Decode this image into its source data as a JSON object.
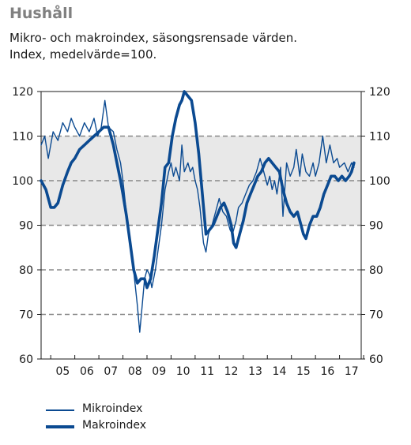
{
  "title": "Hushåll",
  "subtitle": [
    "Mikro- och makroindex, säsongsrensade värden.",
    "Index, medelvärde=100."
  ],
  "colors": {
    "series": "#0b4a91",
    "band": "#e8e8e8",
    "gridline": "#888888"
  },
  "chart_data": {
    "type": "line",
    "title": "Hushåll",
    "ylim": [
      60,
      120
    ],
    "yticks": [
      60,
      70,
      80,
      90,
      100,
      110,
      120
    ],
    "ytick_labels": [
      "60",
      "70",
      "80",
      "90",
      "100",
      "110",
      "120"
    ],
    "xlim": [
      2004.6,
      2017.9
    ],
    "xtick_labels": [
      "05",
      "06",
      "07",
      "08",
      "09",
      "10",
      "11",
      "12",
      "13",
      "14",
      "15",
      "16",
      "17"
    ],
    "shaded_band": [
      90,
      110
    ],
    "dashed_gridlines": [
      70,
      80,
      90,
      100,
      110
    ],
    "legend_position": "bottom-left",
    "series": [
      {
        "name": "Mikroindex",
        "style": "thin",
        "points": [
          [
            2004.6,
            108
          ],
          [
            2004.75,
            110
          ],
          [
            2004.9,
            105
          ],
          [
            2005.1,
            111
          ],
          [
            2005.3,
            109
          ],
          [
            2005.5,
            113
          ],
          [
            2005.7,
            111
          ],
          [
            2005.85,
            114
          ],
          [
            2006.0,
            112
          ],
          [
            2006.2,
            110
          ],
          [
            2006.4,
            113
          ],
          [
            2006.6,
            111
          ],
          [
            2006.8,
            114
          ],
          [
            2006.95,
            110
          ],
          [
            2007.1,
            112
          ],
          [
            2007.25,
            118
          ],
          [
            2007.4,
            112
          ],
          [
            2007.6,
            111
          ],
          [
            2007.75,
            107
          ],
          [
            2007.9,
            104
          ],
          [
            2008.0,
            100
          ],
          [
            2008.1,
            95
          ],
          [
            2008.25,
            88
          ],
          [
            2008.4,
            82
          ],
          [
            2008.5,
            77
          ],
          [
            2008.6,
            72
          ],
          [
            2008.7,
            66
          ],
          [
            2008.8,
            72
          ],
          [
            2008.9,
            78
          ],
          [
            2009.0,
            80
          ],
          [
            2009.1,
            79
          ],
          [
            2009.2,
            76
          ],
          [
            2009.35,
            80
          ],
          [
            2009.5,
            86
          ],
          [
            2009.6,
            90
          ],
          [
            2009.75,
            98
          ],
          [
            2009.9,
            102
          ],
          [
            2010.0,
            104
          ],
          [
            2010.1,
            101
          ],
          [
            2010.2,
            103
          ],
          [
            2010.35,
            100
          ],
          [
            2010.45,
            108
          ],
          [
            2010.55,
            102
          ],
          [
            2010.7,
            104
          ],
          [
            2010.8,
            102
          ],
          [
            2010.9,
            103
          ],
          [
            2011.0,
            100
          ],
          [
            2011.1,
            98
          ],
          [
            2011.2,
            94
          ],
          [
            2011.35,
            86
          ],
          [
            2011.45,
            84
          ],
          [
            2011.55,
            88
          ],
          [
            2011.7,
            90
          ],
          [
            2011.85,
            93
          ],
          [
            2012.0,
            96
          ],
          [
            2012.15,
            93
          ],
          [
            2012.3,
            92
          ],
          [
            2012.45,
            89
          ],
          [
            2012.55,
            88
          ],
          [
            2012.7,
            91
          ],
          [
            2012.8,
            94
          ],
          [
            2012.95,
            95
          ],
          [
            2013.1,
            97
          ],
          [
            2013.25,
            99
          ],
          [
            2013.4,
            100
          ],
          [
            2013.55,
            102
          ],
          [
            2013.7,
            105
          ],
          [
            2013.85,
            102
          ],
          [
            2014.0,
            99
          ],
          [
            2014.1,
            101
          ],
          [
            2014.2,
            98
          ],
          [
            2014.3,
            100
          ],
          [
            2014.4,
            97
          ],
          [
            2014.55,
            103
          ],
          [
            2014.65,
            92
          ],
          [
            2014.8,
            104
          ],
          [
            2014.95,
            101
          ],
          [
            2015.1,
            103
          ],
          [
            2015.2,
            107
          ],
          [
            2015.35,
            101
          ],
          [
            2015.45,
            106
          ],
          [
            2015.6,
            102
          ],
          [
            2015.75,
            101
          ],
          [
            2015.9,
            104
          ],
          [
            2016.0,
            101
          ],
          [
            2016.15,
            104
          ],
          [
            2016.3,
            110
          ],
          [
            2016.45,
            104
          ],
          [
            2016.6,
            108
          ],
          [
            2016.75,
            104
          ],
          [
            2016.9,
            105
          ],
          [
            2017.0,
            103
          ],
          [
            2017.2,
            104
          ],
          [
            2017.35,
            102
          ],
          [
            2017.5,
            104
          ],
          [
            2017.6,
            103
          ]
        ]
      },
      {
        "name": "Makroindex",
        "style": "thick",
        "points": [
          [
            2004.6,
            100
          ],
          [
            2004.8,
            98
          ],
          [
            2005.0,
            94
          ],
          [
            2005.15,
            94
          ],
          [
            2005.3,
            95
          ],
          [
            2005.5,
            99
          ],
          [
            2005.7,
            102
          ],
          [
            2005.85,
            104
          ],
          [
            2006.0,
            105
          ],
          [
            2006.2,
            107
          ],
          [
            2006.4,
            108
          ],
          [
            2006.6,
            109
          ],
          [
            2006.8,
            110
          ],
          [
            2007.0,
            111
          ],
          [
            2007.2,
            112
          ],
          [
            2007.4,
            112
          ],
          [
            2007.6,
            108
          ],
          [
            2007.75,
            104
          ],
          [
            2007.9,
            100
          ],
          [
            2008.0,
            97
          ],
          [
            2008.15,
            92
          ],
          [
            2008.3,
            86
          ],
          [
            2008.45,
            80
          ],
          [
            2008.6,
            77
          ],
          [
            2008.75,
            78
          ],
          [
            2008.9,
            78
          ],
          [
            2009.0,
            76
          ],
          [
            2009.15,
            78
          ],
          [
            2009.3,
            83
          ],
          [
            2009.45,
            89
          ],
          [
            2009.6,
            95
          ],
          [
            2009.75,
            103
          ],
          [
            2009.9,
            104
          ],
          [
            2010.05,
            110
          ],
          [
            2010.2,
            114
          ],
          [
            2010.35,
            117
          ],
          [
            2010.45,
            118
          ],
          [
            2010.55,
            120
          ],
          [
            2010.7,
            119
          ],
          [
            2010.85,
            118
          ],
          [
            2011.0,
            113
          ],
          [
            2011.15,
            106
          ],
          [
            2011.3,
            97
          ],
          [
            2011.45,
            88
          ],
          [
            2011.6,
            89
          ],
          [
            2011.75,
            90
          ],
          [
            2011.9,
            92
          ],
          [
            2012.05,
            94
          ],
          [
            2012.2,
            95
          ],
          [
            2012.35,
            93
          ],
          [
            2012.5,
            90
          ],
          [
            2012.6,
            86
          ],
          [
            2012.7,
            85
          ],
          [
            2012.85,
            88
          ],
          [
            2013.0,
            91
          ],
          [
            2013.15,
            95
          ],
          [
            2013.3,
            97
          ],
          [
            2013.45,
            99
          ],
          [
            2013.6,
            101
          ],
          [
            2013.75,
            102
          ],
          [
            2013.9,
            104
          ],
          [
            2014.05,
            105
          ],
          [
            2014.2,
            104
          ],
          [
            2014.35,
            103
          ],
          [
            2014.5,
            102
          ],
          [
            2014.65,
            98
          ],
          [
            2014.8,
            95
          ],
          [
            2014.95,
            93
          ],
          [
            2015.1,
            92
          ],
          [
            2015.25,
            93
          ],
          [
            2015.4,
            90
          ],
          [
            2015.5,
            88
          ],
          [
            2015.6,
            87
          ],
          [
            2015.75,
            90
          ],
          [
            2015.9,
            92
          ],
          [
            2016.05,
            92
          ],
          [
            2016.2,
            94
          ],
          [
            2016.35,
            97
          ],
          [
            2016.5,
            99
          ],
          [
            2016.65,
            101
          ],
          [
            2016.8,
            101
          ],
          [
            2016.95,
            100
          ],
          [
            2017.1,
            101
          ],
          [
            2017.25,
            100
          ],
          [
            2017.4,
            101
          ],
          [
            2017.5,
            102
          ],
          [
            2017.6,
            104
          ]
        ]
      }
    ]
  }
}
